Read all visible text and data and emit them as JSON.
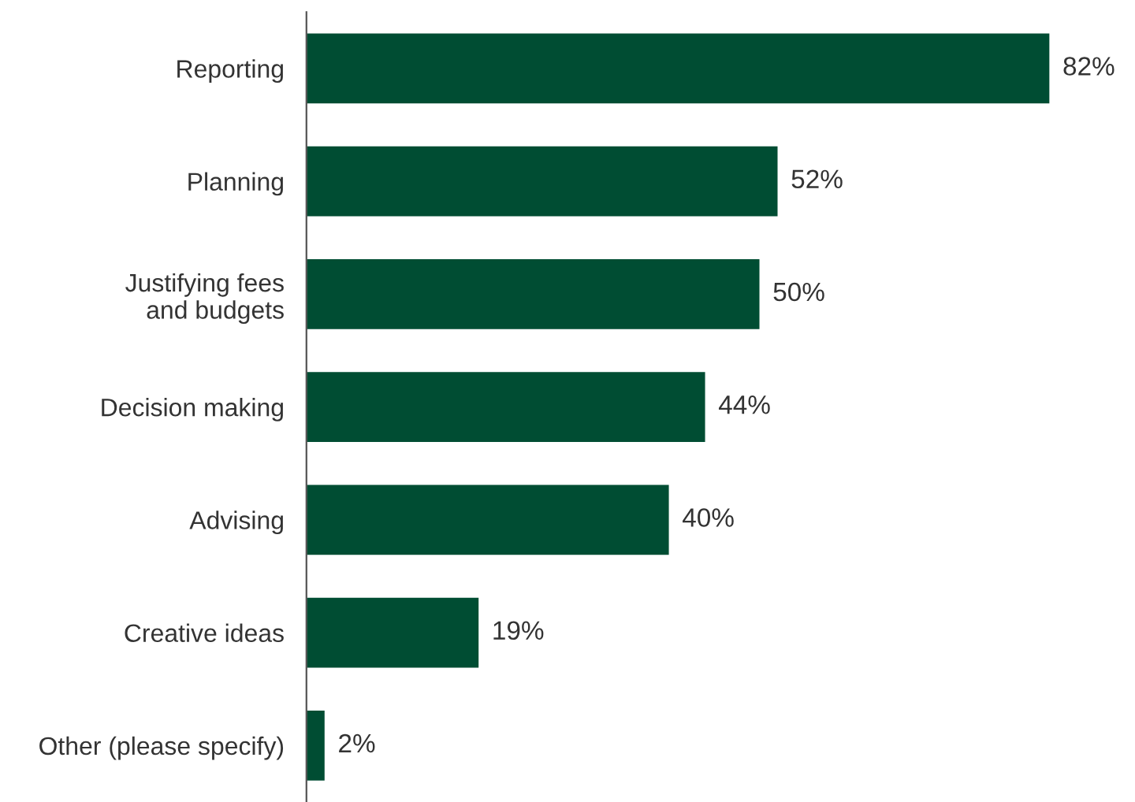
{
  "chart_data": {
    "type": "bar",
    "orientation": "horizontal",
    "categories": [
      "Reporting",
      "Planning",
      "Justifying fees\nand budgets",
      "Decision making",
      "Advising",
      "Creative ideas",
      "Other (please specify)"
    ],
    "values": [
      82,
      52,
      50,
      44,
      40,
      19,
      2
    ],
    "value_labels": [
      "82%",
      "52%",
      "50%",
      "44%",
      "40%",
      "19%",
      "2%"
    ],
    "color": "#004d33",
    "grid": false,
    "legend": false
  }
}
